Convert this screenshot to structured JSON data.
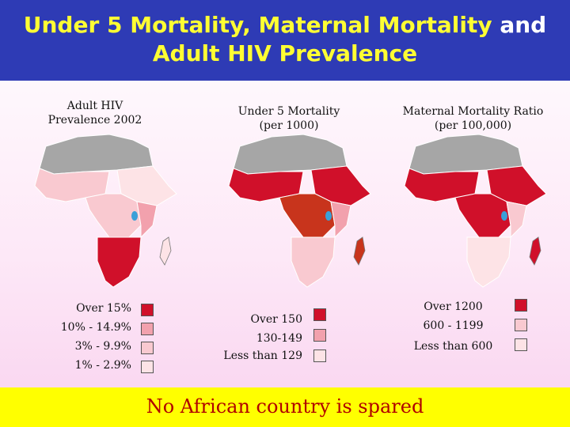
{
  "title": {
    "part1": "Under 5 Mortality, Maternal Mortality",
    "part2": " and",
    "line2": "Adult HIV Prevalence"
  },
  "panels": {
    "hiv": {
      "caption_line1": "Adult HIV",
      "caption_line2": "Prevalence 2002",
      "legend": [
        {
          "label": "Over 15%",
          "color": "#d0102a"
        },
        {
          "label": "10% - 14.9%",
          "color": "#f2a1ad"
        },
        {
          "label": "3% - 9.9%",
          "color": "#f9c9d0"
        },
        {
          "label": "1% - 2.9%",
          "color": "#fde3e6"
        }
      ]
    },
    "u5": {
      "caption_line1": "Under 5 Mortality",
      "caption_line2": "(per 1000)",
      "legend": [
        {
          "label": "Over 150",
          "color": "#d0102a"
        },
        {
          "label": "130-149",
          "color": "#f2a1ad"
        },
        {
          "label": "Less than 129",
          "color": "#fde3e6"
        }
      ]
    },
    "mmr": {
      "caption_line1": "Maternal Mortality Ratio",
      "caption_line2": "(per 100,000)",
      "legend": [
        {
          "label": "Over 1200",
          "color": "#d0102a"
        },
        {
          "label": "600 - 1199",
          "color": "#f9c9d0"
        },
        {
          "label": "Less than 600",
          "color": "#fde3e6"
        }
      ]
    }
  },
  "footer": "No African country is spared",
  "colors": {
    "header_bg": "#2e3bb5",
    "title_highlight": "#ffff33",
    "footer_bg": "#ffff00",
    "footer_text": "#b00000",
    "no_data_grey": "#a6a6a6",
    "lake_blue": "#3aa0d8"
  }
}
